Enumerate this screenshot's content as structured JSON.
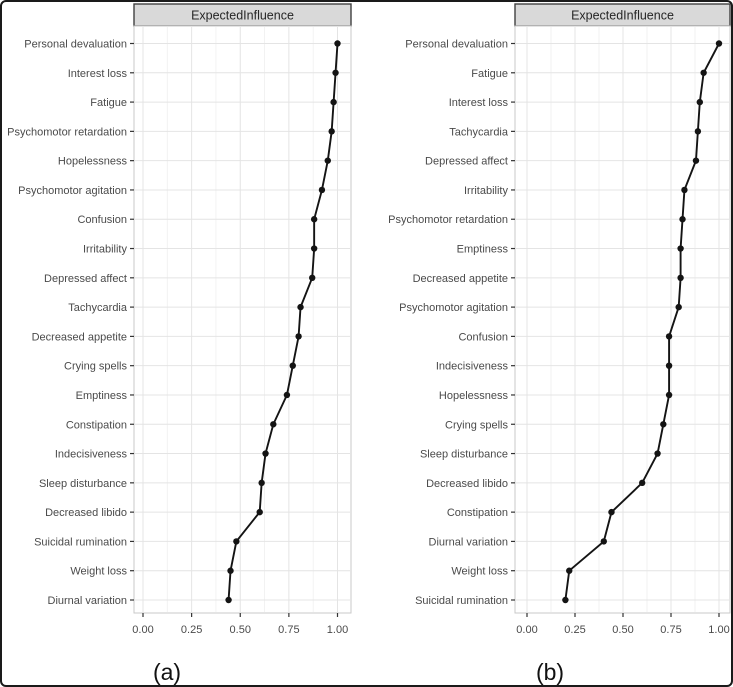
{
  "figure": {
    "background": "#ffffff"
  },
  "colors": {
    "figure_border": "#1a1a1a",
    "strip_fill": "#d9d9d9",
    "strip_border": "#404040",
    "panel_border": "#c9c9c9",
    "grid_major": "#e4e4e4",
    "grid_minor": "#f1f1f1",
    "line": "#141414",
    "point": "#141414",
    "axis_label": "#4a4a4a",
    "tick": "#333333",
    "caption": "#111111"
  },
  "chart_data": [
    {
      "type": "line",
      "orientation": "horizontal",
      "title": "ExpectedInfluence",
      "caption": "(a)",
      "xlabel": "",
      "ylabel": "",
      "xlim": [
        0.0,
        1.0
      ],
      "x_ticks": [
        "0.00",
        "0.25",
        "0.50",
        "0.75",
        "1.00"
      ],
      "grid": true,
      "legend": false,
      "categories": [
        "Personal devaluation",
        "Interest loss",
        "Fatigue",
        "Psychomotor retardation",
        "Hopelessness",
        "Psychomotor agitation",
        "Confusion",
        "Irritability",
        "Depressed affect",
        "Tachycardia",
        "Decreased appetite",
        "Crying spells",
        "Emptiness",
        "Constipation",
        "Indecisiveness",
        "Sleep disturbance",
        "Decreased libido",
        "Suicidal rumination",
        "Weight loss",
        "Diurnal variation"
      ],
      "values": [
        1.0,
        0.99,
        0.98,
        0.97,
        0.95,
        0.92,
        0.88,
        0.88,
        0.87,
        0.81,
        0.8,
        0.77,
        0.74,
        0.67,
        0.63,
        0.61,
        0.6,
        0.48,
        0.45,
        0.44
      ]
    },
    {
      "type": "line",
      "orientation": "horizontal",
      "title": "ExpectedInfluence",
      "caption": "(b)",
      "xlabel": "",
      "ylabel": "",
      "xlim": [
        0.0,
        1.0
      ],
      "x_ticks": [
        "0.00",
        "0.25",
        "0.50",
        "0.75",
        "1.00"
      ],
      "grid": true,
      "legend": false,
      "categories": [
        "Personal devaluation",
        "Fatigue",
        "Interest loss",
        "Tachycardia",
        "Depressed affect",
        "Irritability",
        "Psychomotor retardation",
        "Emptiness",
        "Decreased appetite",
        "Psychomotor agitation",
        "Confusion",
        "Indecisiveness",
        "Hopelessness",
        "Crying spells",
        "Sleep disturbance",
        "Decreased libido",
        "Constipation",
        "Diurnal variation",
        "Weight loss",
        "Suicidal rumination"
      ],
      "values": [
        1.0,
        0.92,
        0.9,
        0.89,
        0.88,
        0.82,
        0.81,
        0.8,
        0.8,
        0.79,
        0.74,
        0.74,
        0.74,
        0.71,
        0.68,
        0.6,
        0.44,
        0.4,
        0.22,
        0.2
      ]
    }
  ]
}
